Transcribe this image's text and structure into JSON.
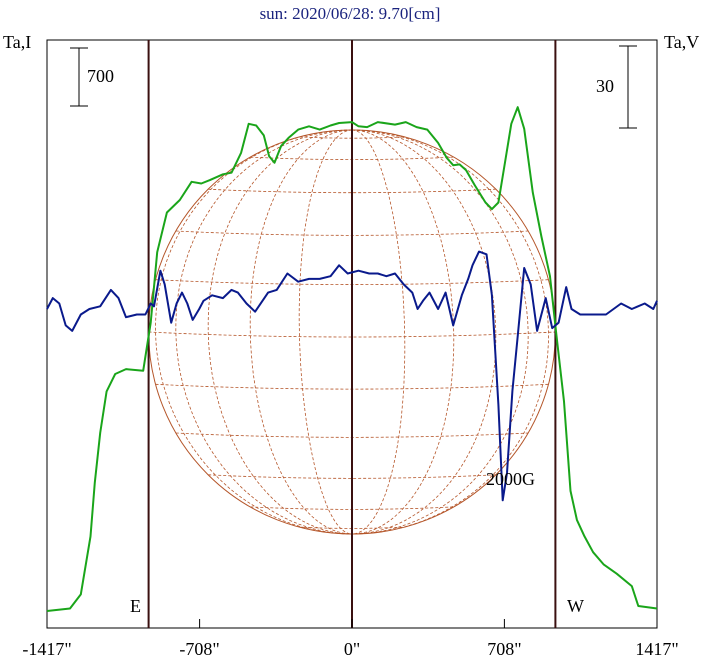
{
  "title": "sun: 2020/06/28: 9.70[cm]",
  "left_axis_label": "Ta,I",
  "right_axis_label": "Ta,V",
  "scale_bar_left": "700",
  "scale_bar_right": "30",
  "limb_labels": {
    "east": "E",
    "west": "W"
  },
  "annotation": "2000G",
  "colors": {
    "title": "#1a237e",
    "intensity": "#1aa51a",
    "polarization": "#0a1a8c",
    "disk_grid": "#b5562a",
    "markers": "#3a1010",
    "frame": "#000000"
  },
  "chart_data": {
    "type": "line",
    "title": "sun: 2020/06/28: 9.70[cm]",
    "xlabel": "",
    "ylabel_left": "Ta,I",
    "ylabel_right": "Ta,V",
    "x_tick_labels": [
      "-1417\"",
      "-708\"",
      "0\"",
      "708\"",
      "1417\""
    ],
    "x_ticks": [
      -1417,
      -708,
      0,
      708,
      1417
    ],
    "xlim": [
      -1417,
      1417
    ],
    "vertical_markers": [
      -945,
      0,
      945
    ],
    "solar_disk_radius_arcsec": 945,
    "series": [
      {
        "name": "Ta,I",
        "axis": "left",
        "points": [
          [
            -1417,
            0
          ],
          [
            -1310,
            30
          ],
          [
            -1260,
            200
          ],
          [
            -1215,
            900
          ],
          [
            -1195,
            1550
          ],
          [
            -1170,
            2150
          ],
          [
            -1140,
            2650
          ],
          [
            -1100,
            2860
          ],
          [
            -1050,
            2920
          ],
          [
            -970,
            2900
          ],
          [
            -935,
            3480
          ],
          [
            -905,
            4330
          ],
          [
            -860,
            4810
          ],
          [
            -800,
            4960
          ],
          [
            -745,
            5180
          ],
          [
            -700,
            5160
          ],
          [
            -660,
            5200
          ],
          [
            -600,
            5270
          ],
          [
            -560,
            5290
          ],
          [
            -515,
            5530
          ],
          [
            -480,
            5880
          ],
          [
            -445,
            5860
          ],
          [
            -410,
            5740
          ],
          [
            -385,
            5490
          ],
          [
            -360,
            5410
          ],
          [
            -330,
            5610
          ],
          [
            -295,
            5710
          ],
          [
            -250,
            5810
          ],
          [
            -200,
            5850
          ],
          [
            -150,
            5810
          ],
          [
            -100,
            5860
          ],
          [
            -60,
            5890
          ],
          [
            0,
            5900
          ],
          [
            30,
            5850
          ],
          [
            70,
            5840
          ],
          [
            120,
            5900
          ],
          [
            200,
            5870
          ],
          [
            250,
            5900
          ],
          [
            300,
            5840
          ],
          [
            350,
            5810
          ],
          [
            400,
            5650
          ],
          [
            440,
            5470
          ],
          [
            470,
            5380
          ],
          [
            500,
            5390
          ],
          [
            530,
            5320
          ],
          [
            570,
            5140
          ],
          [
            620,
            4930
          ],
          [
            650,
            4850
          ],
          [
            680,
            4930
          ],
          [
            710,
            5400
          ],
          [
            740,
            5880
          ],
          [
            770,
            6080
          ],
          [
            800,
            5820
          ],
          [
            840,
            5050
          ],
          [
            880,
            4520
          ],
          [
            920,
            4040
          ],
          [
            950,
            3320
          ],
          [
            985,
            2530
          ],
          [
            1015,
            1450
          ],
          [
            1045,
            1100
          ],
          [
            1080,
            900
          ],
          [
            1120,
            710
          ],
          [
            1170,
            560
          ],
          [
            1230,
            450
          ],
          [
            1300,
            300
          ],
          [
            1330,
            60
          ],
          [
            1417,
            30
          ]
        ]
      },
      {
        "name": "Ta,V",
        "axis": "right",
        "points": [
          [
            -1417,
            0
          ],
          [
            -1390,
            4
          ],
          [
            -1360,
            2
          ],
          [
            -1330,
            -6
          ],
          [
            -1300,
            -8
          ],
          [
            -1260,
            -2
          ],
          [
            -1220,
            0
          ],
          [
            -1170,
            1
          ],
          [
            -1120,
            7
          ],
          [
            -1085,
            4
          ],
          [
            -1050,
            -3
          ],
          [
            -1000,
            -2
          ],
          [
            -960,
            -2
          ],
          [
            -935,
            2
          ],
          [
            -920,
            1
          ],
          [
            -890,
            14
          ],
          [
            -870,
            9
          ],
          [
            -840,
            -5
          ],
          [
            -815,
            2
          ],
          [
            -790,
            6
          ],
          [
            -765,
            2
          ],
          [
            -740,
            -4
          ],
          [
            -710,
            0
          ],
          [
            -690,
            3
          ],
          [
            -650,
            5
          ],
          [
            -600,
            4
          ],
          [
            -560,
            7
          ],
          [
            -530,
            6
          ],
          [
            -490,
            2
          ],
          [
            -450,
            -1
          ],
          [
            -390,
            6
          ],
          [
            -350,
            7
          ],
          [
            -300,
            13
          ],
          [
            -250,
            10
          ],
          [
            -200,
            11
          ],
          [
            -150,
            11
          ],
          [
            -100,
            12
          ],
          [
            -60,
            16
          ],
          [
            -20,
            13
          ],
          [
            30,
            14
          ],
          [
            80,
            13
          ],
          [
            120,
            13
          ],
          [
            160,
            12
          ],
          [
            200,
            13
          ],
          [
            240,
            9
          ],
          [
            280,
            6
          ],
          [
            305,
            0
          ],
          [
            330,
            3
          ],
          [
            360,
            6
          ],
          [
            400,
            0
          ],
          [
            435,
            6
          ],
          [
            470,
            -6
          ],
          [
            510,
            5
          ],
          [
            540,
            11
          ],
          [
            560,
            16
          ],
          [
            590,
            21
          ],
          [
            625,
            20
          ],
          [
            650,
            5
          ],
          [
            680,
            -35
          ],
          [
            700,
            -70
          ],
          [
            720,
            -60
          ],
          [
            745,
            -30
          ],
          [
            770,
            -10
          ],
          [
            800,
            15
          ],
          [
            830,
            9
          ],
          [
            860,
            -8
          ],
          [
            900,
            4
          ],
          [
            930,
            -7
          ],
          [
            960,
            -5
          ],
          [
            995,
            8
          ],
          [
            1020,
            0
          ],
          [
            1060,
            -2
          ],
          [
            1120,
            -2
          ],
          [
            1180,
            -2
          ],
          [
            1250,
            2
          ],
          [
            1300,
            0
          ],
          [
            1360,
            2
          ],
          [
            1400,
            0
          ],
          [
            1417,
            3
          ]
        ]
      }
    ],
    "annotations": [
      {
        "text": "2000G",
        "x": 708,
        "series": "Ta,V"
      }
    ],
    "grid": false
  }
}
